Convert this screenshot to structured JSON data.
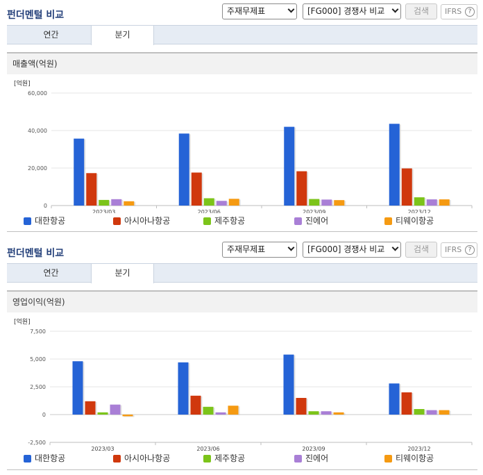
{
  "header": {
    "title": "펀더멘털 비교",
    "select_statement": "주재무제표",
    "select_compare": "[FG000] 경쟁사 비교",
    "search_label": "검색",
    "ifrs_label": "IFRS",
    "help_label": "?"
  },
  "tabs": [
    {
      "label": "연간",
      "active": false
    },
    {
      "label": "분기",
      "active": true
    }
  ],
  "colors": {
    "대한항공": "#2563d6",
    "아시아나항공": "#d0380d",
    "제주항공": "#7cc41a",
    "진에어": "#a97fd6",
    "티웨이항공": "#f59a12"
  },
  "chart_data": [
    {
      "type": "bar",
      "title": "매출액(억원)",
      "unit": "[억원]",
      "categories": [
        "2023/03",
        "2023/06",
        "2023/09",
        "2023/12"
      ],
      "series": [
        {
          "name": "대한항공",
          "values": [
            35700,
            38400,
            42000,
            43600
          ]
        },
        {
          "name": "아시아나항공",
          "values": [
            17300,
            17600,
            18300,
            19800
          ]
        },
        {
          "name": "제주항공",
          "values": [
            3000,
            3900,
            3500,
            4400
          ]
        },
        {
          "name": "진에어",
          "values": [
            3400,
            2500,
            3200,
            3300
          ]
        },
        {
          "name": "티웨이항공",
          "values": [
            2300,
            3600,
            2900,
            3300
          ]
        }
      ],
      "yticks": [
        0,
        20000,
        40000,
        60000
      ],
      "ytick_labels": [
        "0",
        "20,000",
        "40,000",
        "60,000"
      ],
      "ylim": [
        0,
        60000
      ],
      "legend": "bottom"
    },
    {
      "type": "bar",
      "title": "영업이익(억원)",
      "unit": "[억원]",
      "categories": [
        "2023/03",
        "2023/06",
        "2023/09",
        "2023/12"
      ],
      "series": [
        {
          "name": "대한항공",
          "values": [
            4800,
            4700,
            5400,
            2800
          ]
        },
        {
          "name": "아시아나항공",
          "values": [
            1200,
            1700,
            1500,
            2000
          ]
        },
        {
          "name": "제주항공",
          "values": [
            200,
            700,
            300,
            500
          ]
        },
        {
          "name": "진에어",
          "values": [
            900,
            200,
            300,
            400
          ]
        },
        {
          "name": "티웨이항공",
          "values": [
            -150,
            800,
            200,
            400
          ]
        }
      ],
      "yticks": [
        -2500,
        0,
        2500,
        5000,
        7500
      ],
      "ytick_labels": [
        "-2,500",
        "0",
        "2,500",
        "5,000",
        "7,500"
      ],
      "ylim": [
        -2500,
        7500
      ],
      "legend": "bottom"
    }
  ]
}
